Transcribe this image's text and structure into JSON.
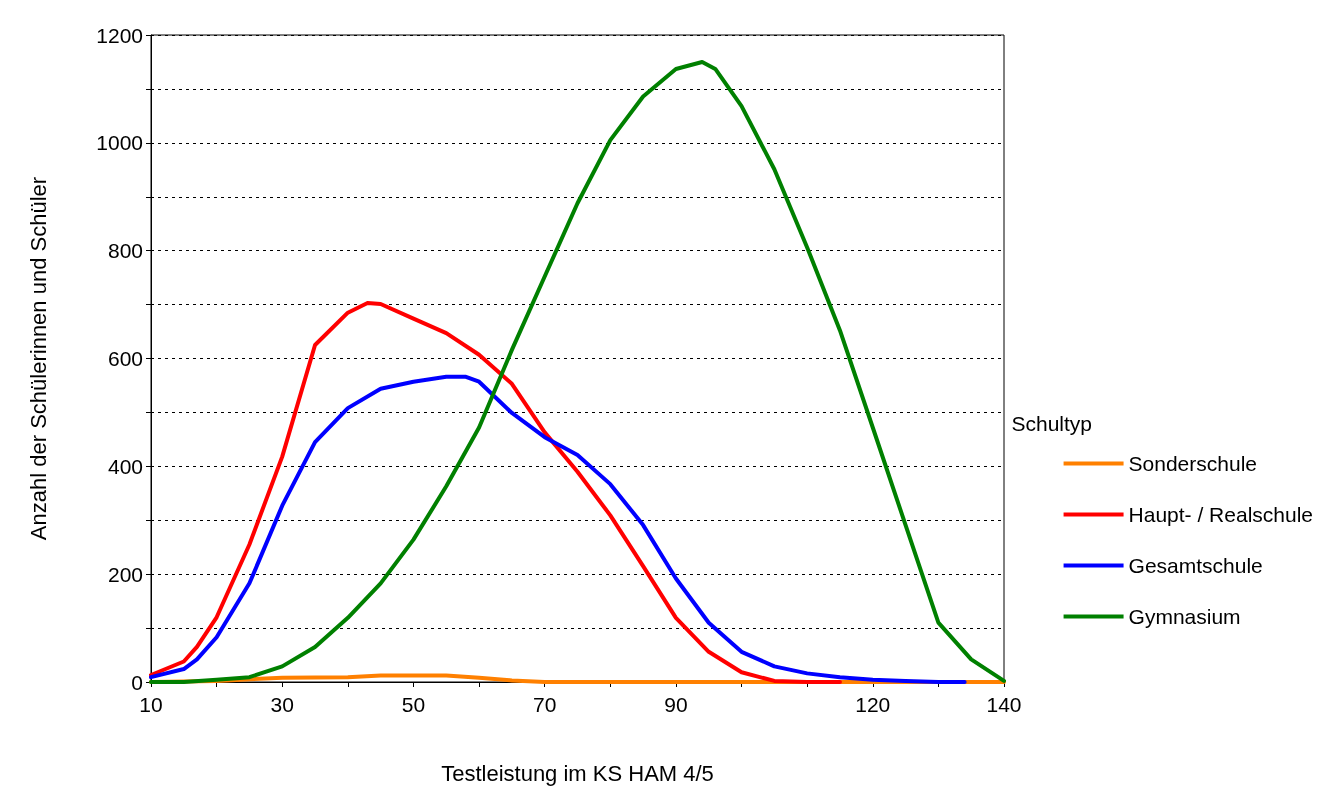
{
  "chart_data": {
    "type": "line",
    "xlabel": "Testleistung im KS HAM 4/5",
    "ylabel": "Anzahl der Schülerinnen und Schüler",
    "legend_title": "Schultyp",
    "legend": "right",
    "grid": "y",
    "marker": "none",
    "line_style": "solid",
    "xlim": [
      10,
      140
    ],
    "xticks": [
      10,
      {
        "value": 20,
        "label": null
      },
      30,
      {
        "value": 40,
        "label": null
      },
      50,
      {
        "value": 60,
        "label": null
      },
      70,
      {
        "value": 80,
        "label": null
      },
      90,
      {
        "value": 100,
        "label": null
      },
      {
        "value": 110,
        "label": null
      },
      120,
      {
        "value": 130,
        "label": null
      },
      140
    ],
    "ylim": [
      0,
      1200
    ],
    "yticks": [
      0,
      {
        "value": 100,
        "label": null
      },
      200,
      {
        "value": 300,
        "label": null
      },
      400,
      {
        "value": 500,
        "label": null
      },
      600,
      {
        "value": 700,
        "label": null
      },
      800,
      {
        "value": 900,
        "label": null
      },
      1000,
      {
        "value": 1100,
        "label": null
      },
      1200
    ],
    "series": [
      {
        "name": "Sonderschule",
        "color": "#ff8000",
        "x": [
          10,
          20,
          30,
          40,
          45,
          55,
          60,
          65,
          70,
          140
        ],
        "values": [
          0,
          2,
          8,
          9,
          12,
          12,
          8,
          3,
          0,
          0
        ]
      },
      {
        "name": "Haupt- / Realschule",
        "color": "#ff0000",
        "x": [
          10,
          15,
          17,
          20,
          25,
          30,
          35,
          40,
          43,
          45,
          50,
          55,
          60,
          65,
          70,
          75,
          80,
          85,
          90,
          95,
          100,
          105,
          110,
          115
        ],
        "values": [
          13,
          38,
          65,
          120,
          255,
          418,
          625,
          685,
          703,
          701,
          674,
          647,
          607,
          553,
          463,
          390,
          309,
          215,
          119,
          56,
          18,
          2,
          0,
          0
        ]
      },
      {
        "name": "Gesamtschule",
        "color": "#0000ff",
        "x": [
          10,
          15,
          17,
          20,
          25,
          30,
          35,
          40,
          45,
          50,
          55,
          58,
          60,
          65,
          70,
          75,
          80,
          85,
          90,
          95,
          100,
          105,
          110,
          115,
          120,
          125,
          130,
          134
        ],
        "values": [
          9,
          24,
          42,
          83,
          183,
          327,
          445,
          508,
          544,
          557,
          566,
          566,
          557,
          499,
          454,
          421,
          367,
          291,
          192,
          110,
          56,
          29,
          16,
          9,
          4,
          2,
          0,
          0
        ]
      },
      {
        "name": "Gymnasium",
        "color": "#008000",
        "x": [
          10,
          15,
          20,
          25,
          30,
          35,
          40,
          45,
          50,
          55,
          60,
          65,
          70,
          75,
          80,
          85,
          90,
          94,
          96,
          100,
          105,
          110,
          115,
          120,
          125,
          130,
          135,
          140
        ],
        "values": [
          0,
          0,
          4,
          9,
          29,
          65,
          119,
          183,
          264,
          363,
          472,
          616,
          752,
          888,
          1005,
          1086,
          1137,
          1150,
          1137,
          1068,
          951,
          806,
          652,
          472,
          291,
          110,
          42,
          2
        ]
      }
    ]
  }
}
